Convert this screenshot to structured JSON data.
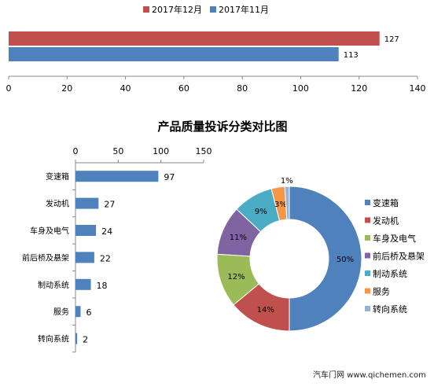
{
  "chart_data": [
    {
      "type": "bar",
      "orientation": "horizontal",
      "categories": [
        ""
      ],
      "series": [
        {
          "name": "2017年12月",
          "values": [
            127
          ],
          "color": "#C0504D"
        },
        {
          "name": "2017年11月",
          "values": [
            113
          ],
          "color": "#4F81BD"
        }
      ],
      "xlim": [
        0,
        140
      ],
      "xticks": [
        0,
        20,
        40,
        60,
        80,
        100,
        120,
        140
      ],
      "legend": "top",
      "grid": false
    },
    {
      "type": "bar",
      "orientation": "horizontal",
      "title": "产品质量投诉分类对比图",
      "categories": [
        "变速箱",
        "发动机",
        "车身及电气",
        "前后桥及悬架",
        "制动系统",
        "服务",
        "转向系统"
      ],
      "values": [
        97,
        27,
        24,
        22,
        18,
        6,
        2
      ],
      "xlim": [
        0,
        150
      ],
      "xticks": [
        0,
        50,
        100,
        150
      ],
      "axis_position": "top",
      "color": "#4F81BD",
      "grid": false
    },
    {
      "type": "pie",
      "style": "donut",
      "categories": [
        "变速箱",
        "发动机",
        "车身及电气",
        "前后桥及悬架",
        "制动系统",
        "服务",
        "转向系统"
      ],
      "labels": [
        "50%",
        "14%",
        "12%",
        "11%",
        "9%",
        "3%",
        "1%"
      ],
      "values": [
        50,
        14,
        12,
        11,
        9,
        3,
        1
      ],
      "colors": [
        "#4F81BD",
        "#C0504D",
        "#9BBB59",
        "#8064A2",
        "#4BACC6",
        "#F79646",
        "#95B3D7"
      ],
      "legend": "right"
    }
  ],
  "watermark": "汽车门网 www.qichemen.com"
}
